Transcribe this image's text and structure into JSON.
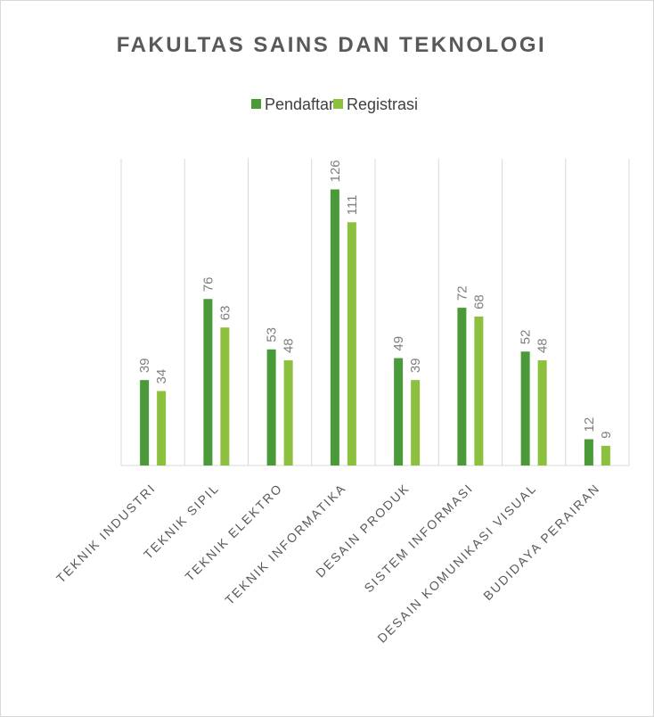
{
  "chart_data": {
    "type": "bar",
    "title": "FAKULTAS SAINS DAN TEKNOLOGI",
    "categories": [
      "TEKNIK INDUSTRI",
      "TEKNIK SIPIL",
      "TEKNIK ELEKTRO",
      "TEKNIK INFORMATIKA",
      "DESAIN PRODUK",
      "SISTEM INFORMASI",
      "DESAIN KOMUNIKASI VISUAL",
      "BUDIDAYA PERAIRAN"
    ],
    "series": [
      {
        "name": "Pendaftar",
        "color": "#4a9a3a",
        "values": [
          39,
          76,
          53,
          126,
          49,
          72,
          52,
          12
        ]
      },
      {
        "name": "Registrasi",
        "color": "#8dc03f",
        "values": [
          34,
          63,
          48,
          111,
          39,
          68,
          48,
          9
        ]
      }
    ],
    "ylim": [
      0,
      140
    ],
    "legend": "top"
  }
}
